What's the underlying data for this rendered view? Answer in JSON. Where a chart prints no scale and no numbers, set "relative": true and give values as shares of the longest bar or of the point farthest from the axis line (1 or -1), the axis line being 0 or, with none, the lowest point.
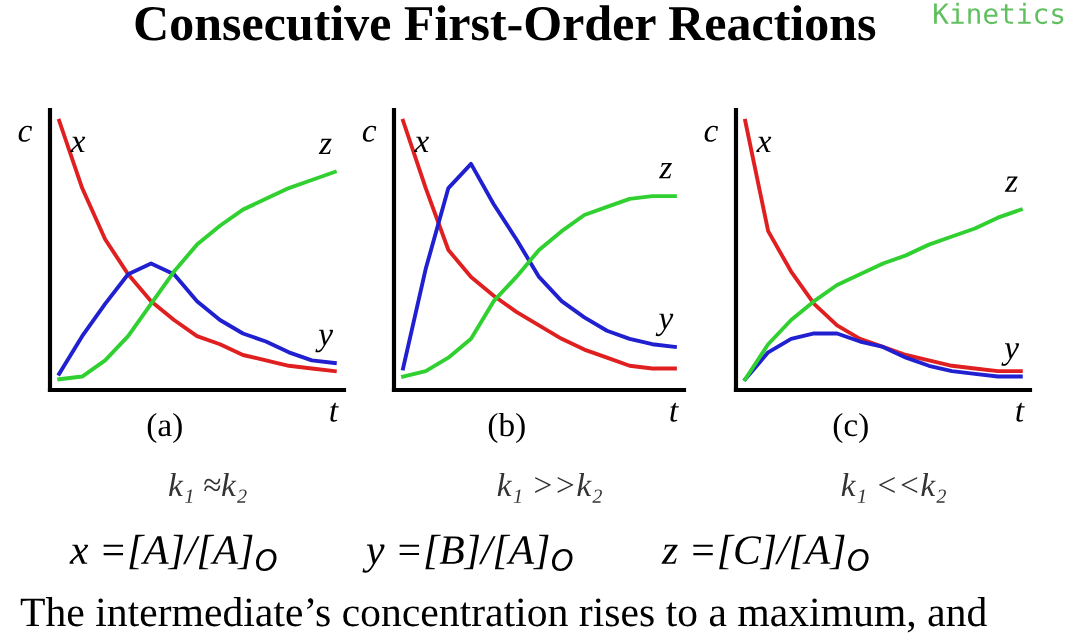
{
  "chart_data": [
    {
      "type": "line",
      "title": "Consecutive First-Order Reactions",
      "xlabel": "t",
      "ylabel": "c",
      "relative": true,
      "legend": false,
      "marker": "none",
      "line_style": "solid",
      "categories": [
        null,
        null,
        null,
        null,
        null,
        null,
        null,
        null,
        null,
        null,
        null,
        null,
        null
      ],
      "series": [
        {
          "name": "x",
          "color": "#e02020",
          "values": [
            1.0,
            0.75,
            0.56,
            0.43,
            0.33,
            0.26,
            0.2,
            0.17,
            0.13,
            0.11,
            0.09,
            0.08,
            0.07
          ]
        },
        {
          "name": "y",
          "color": "#2020d0",
          "values": [
            0.06,
            0.2,
            0.32,
            0.43,
            0.47,
            0.43,
            0.33,
            0.26,
            0.21,
            0.18,
            0.14,
            0.11,
            0.1
          ]
        },
        {
          "name": "z",
          "color": "#30d030",
          "values": [
            0.04,
            0.05,
            0.11,
            0.2,
            0.32,
            0.44,
            0.54,
            0.61,
            0.67,
            0.71,
            0.75,
            0.78,
            0.81
          ]
        }
      ],
      "annotations": [
        "(a)",
        "k₁ ≈k₂",
        "Kinetics",
        "x =[A]/[A]$_{O}$",
        "y =[B]/[A]$_{O}$",
        "z =[C]/[A]$_{O}$",
        "The intermediate’s concentration rises to a maximum, and"
      ]
    },
    {
      "type": "line",
      "xlabel": "t",
      "ylabel": "c",
      "relative": true,
      "legend": false,
      "marker": "none",
      "line_style": "solid",
      "categories": [
        null,
        null,
        null,
        null,
        null,
        null,
        null,
        null,
        null,
        null,
        null,
        null,
        null
      ],
      "series": [
        {
          "name": "x",
          "color": "#e02020",
          "values": [
            1.0,
            0.75,
            0.52,
            0.42,
            0.35,
            0.29,
            0.24,
            0.19,
            0.15,
            0.12,
            0.09,
            0.08,
            0.08
          ]
        },
        {
          "name": "y",
          "color": "#2020d0",
          "values": [
            0.08,
            0.45,
            0.75,
            0.84,
            0.69,
            0.56,
            0.42,
            0.33,
            0.27,
            0.22,
            0.19,
            0.17,
            0.16
          ]
        },
        {
          "name": "z",
          "color": "#30d030",
          "values": [
            0.05,
            0.07,
            0.12,
            0.19,
            0.33,
            0.42,
            0.52,
            0.59,
            0.65,
            0.68,
            0.71,
            0.72,
            0.72
          ]
        }
      ],
      "annotations": [
        "(b)",
        "k₁ >>k₂"
      ]
    },
    {
      "type": "line",
      "xlabel": "t",
      "ylabel": "c",
      "relative": true,
      "legend": false,
      "marker": "none",
      "line_style": "solid",
      "categories": [
        null,
        null,
        null,
        null,
        null,
        null,
        null,
        null,
        null,
        null,
        null,
        null,
        null
      ],
      "series": [
        {
          "name": "x",
          "color": "#e02020",
          "values": [
            1.0,
            0.59,
            0.44,
            0.32,
            0.24,
            0.19,
            0.16,
            0.13,
            0.11,
            0.09,
            0.08,
            0.07,
            0.07
          ]
        },
        {
          "name": "y",
          "color": "#2020d0",
          "values": [
            0.04,
            0.14,
            0.19,
            0.21,
            0.21,
            0.18,
            0.16,
            0.12,
            0.09,
            0.07,
            0.06,
            0.05,
            0.05
          ]
        },
        {
          "name": "z",
          "color": "#30d030",
          "values": [
            0.04,
            0.17,
            0.26,
            0.33,
            0.39,
            0.43,
            0.47,
            0.5,
            0.54,
            0.57,
            0.6,
            0.64,
            0.67
          ]
        }
      ],
      "annotations": [
        "(c)",
        "k₁ <<k₂"
      ]
    }
  ]
}
